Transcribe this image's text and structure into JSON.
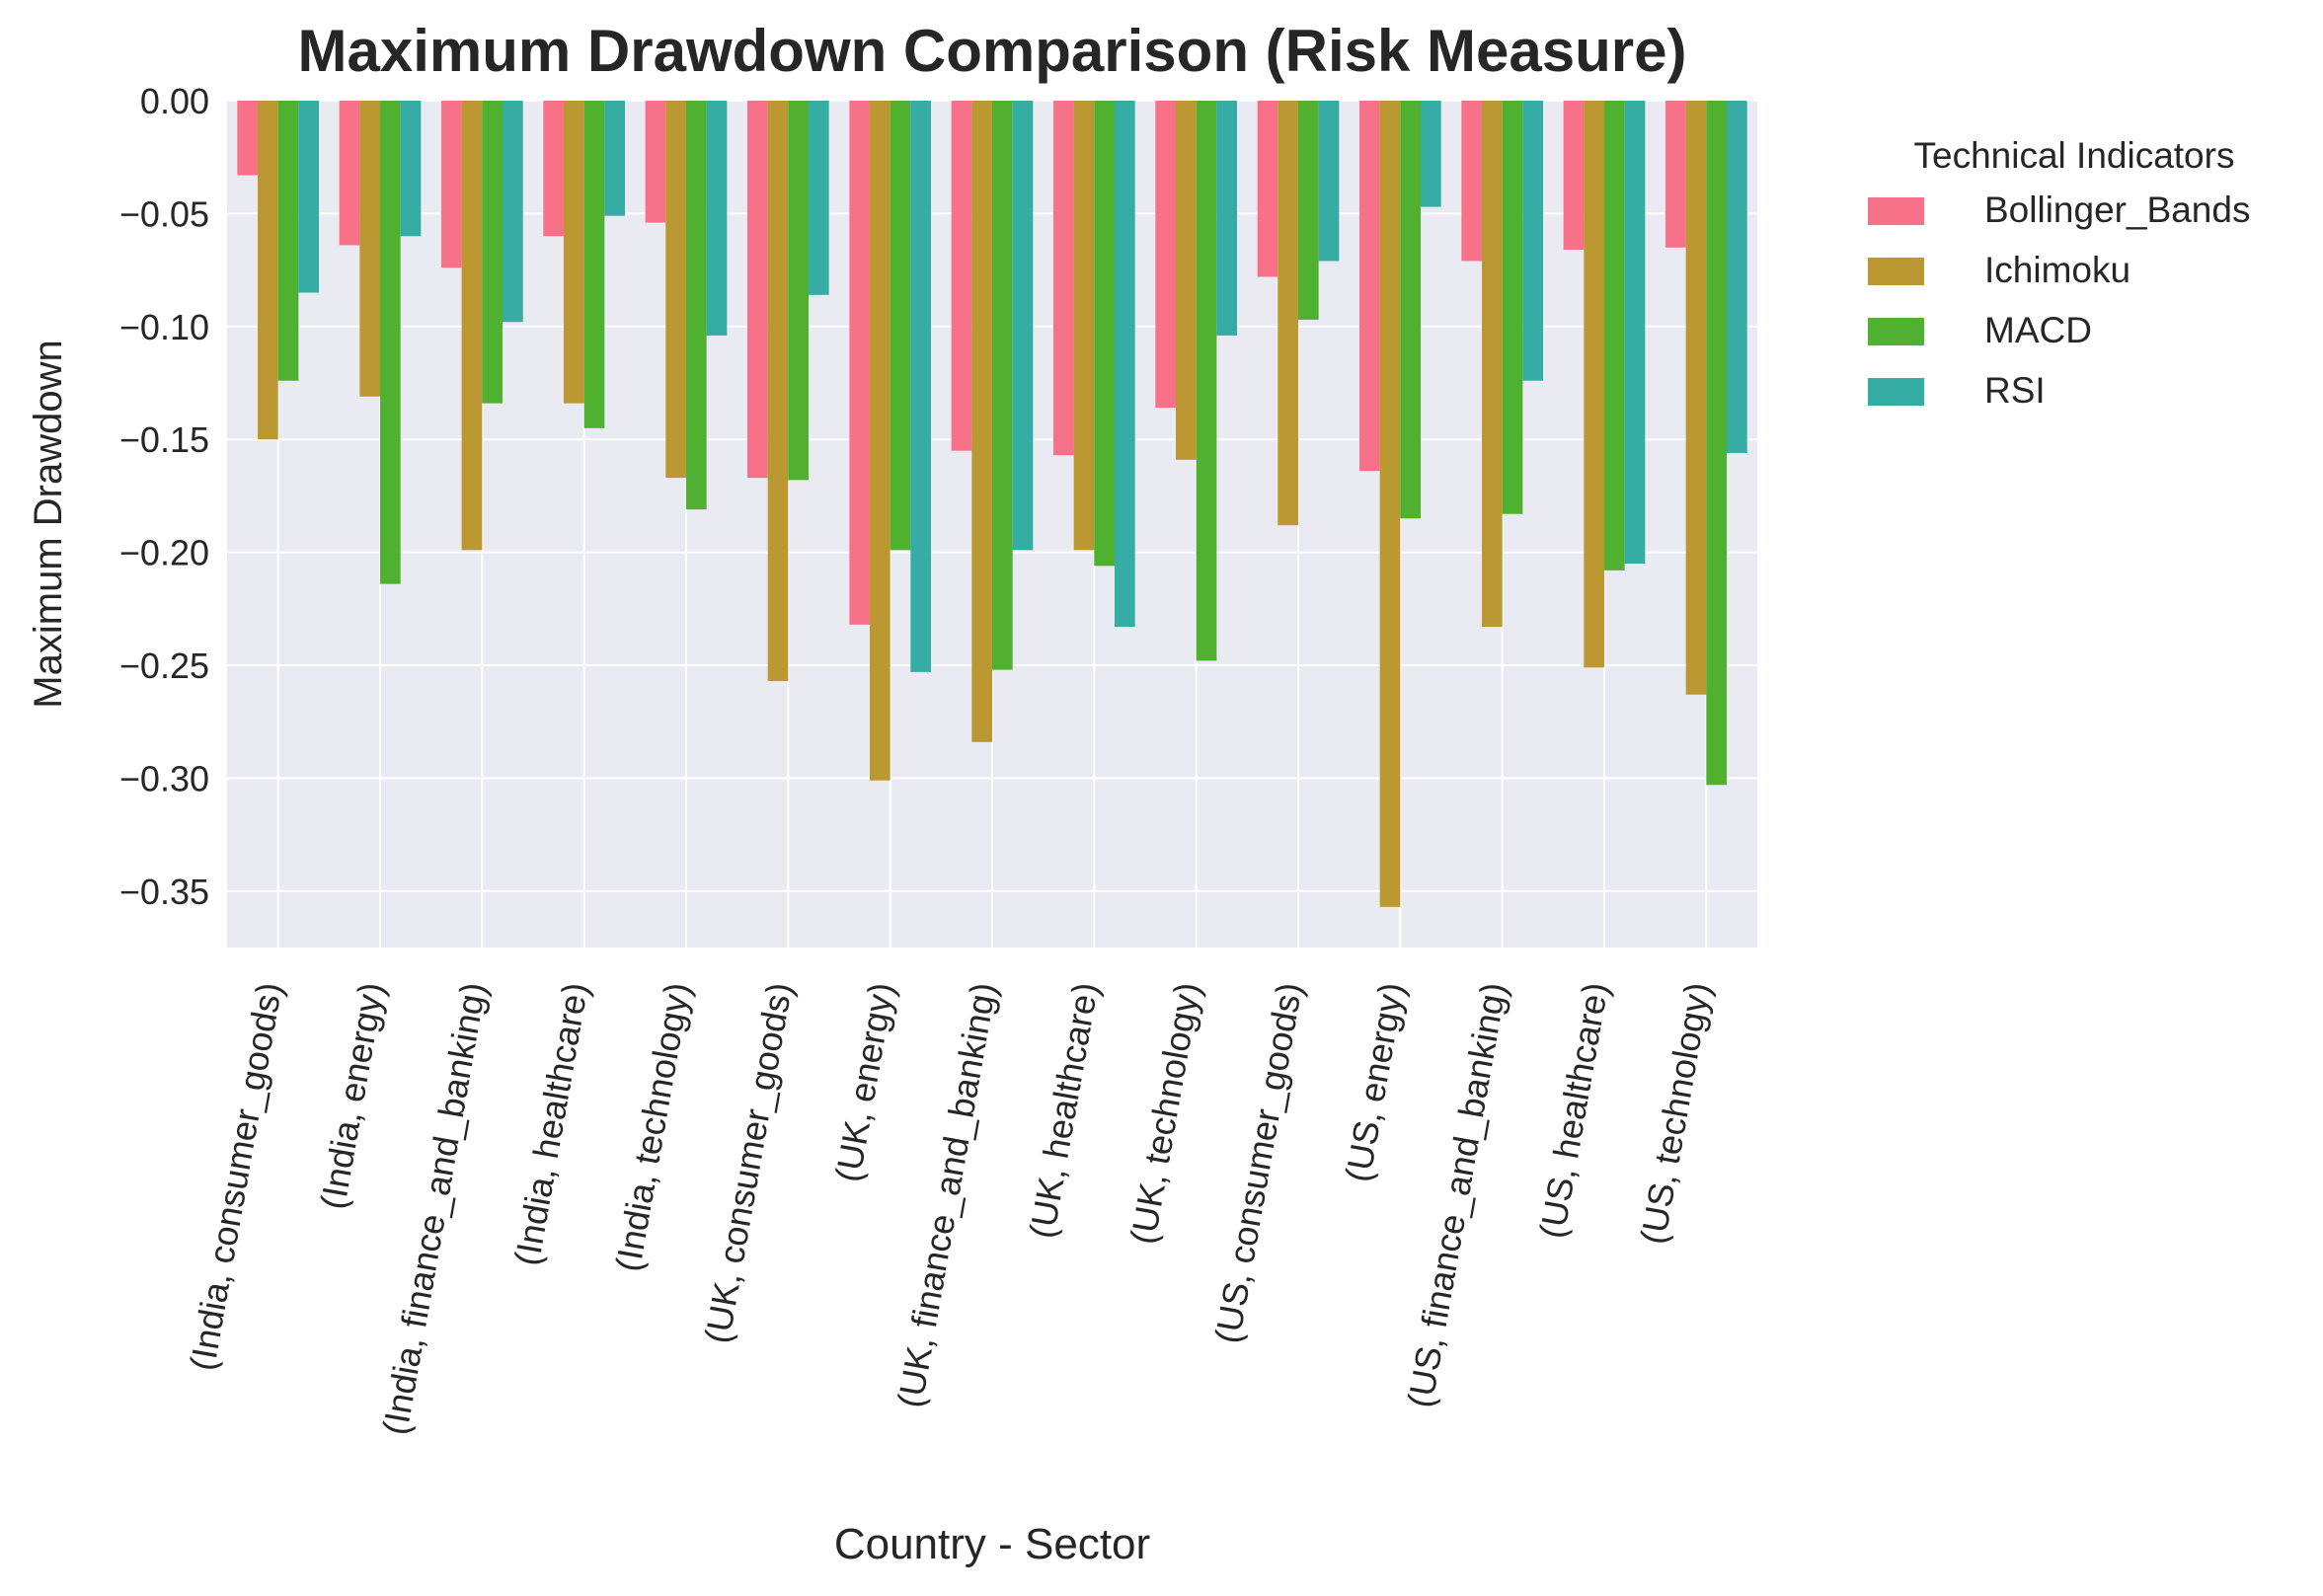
{
  "chart_data": {
    "type": "bar",
    "title": "Maximum Drawdown Comparison (Risk Measure)",
    "xlabel": "Country - Sector",
    "ylabel": "Maximum Drawdown",
    "ylim": [
      -0.375,
      0.0
    ],
    "yticks": [
      0.0,
      -0.05,
      -0.1,
      -0.15,
      -0.2,
      -0.25,
      -0.3,
      -0.35
    ],
    "ytick_labels": [
      "0.00",
      "−0.05",
      "−0.10",
      "−0.15",
      "−0.20",
      "−0.25",
      "−0.30",
      "−0.35"
    ],
    "grid": true,
    "legend": {
      "title": "Technical Indicators",
      "placement": "outside-right"
    },
    "categories": [
      "(India, consumer_goods)",
      "(India, energy)",
      "(India, finance_and_banking)",
      "(India, healthcare)",
      "(India, technology)",
      "(UK, consumer_goods)",
      "(UK, energy)",
      "(UK, finance_and_banking)",
      "(UK, healthcare)",
      "(UK, technology)",
      "(US, consumer_goods)",
      "(US, energy)",
      "(US, finance_and_banking)",
      "(US, healthcare)",
      "(US, technology)"
    ],
    "series": [
      {
        "name": "Bollinger_Bands",
        "color": "#f77189",
        "values": [
          -0.033,
          -0.064,
          -0.074,
          -0.06,
          -0.054,
          -0.167,
          -0.232,
          -0.155,
          -0.157,
          -0.136,
          -0.078,
          -0.164,
          -0.071,
          -0.066,
          -0.065
        ]
      },
      {
        "name": "Ichimoku",
        "color": "#bb9832",
        "values": [
          -0.15,
          -0.131,
          -0.199,
          -0.134,
          -0.167,
          -0.257,
          -0.301,
          -0.284,
          -0.199,
          -0.159,
          -0.188,
          -0.357,
          -0.233,
          -0.251,
          -0.263
        ]
      },
      {
        "name": "MACD",
        "color": "#50b131",
        "values": [
          -0.124,
          -0.214,
          -0.134,
          -0.145,
          -0.181,
          -0.168,
          -0.199,
          -0.252,
          -0.206,
          -0.248,
          -0.097,
          -0.185,
          -0.183,
          -0.208,
          -0.303
        ]
      },
      {
        "name": "RSI",
        "color": "#36ada4",
        "values": [
          -0.085,
          -0.06,
          -0.098,
          -0.051,
          -0.104,
          -0.086,
          -0.253,
          -0.199,
          -0.233,
          -0.104,
          -0.071,
          -0.047,
          -0.124,
          -0.205,
          -0.156
        ]
      }
    ]
  }
}
